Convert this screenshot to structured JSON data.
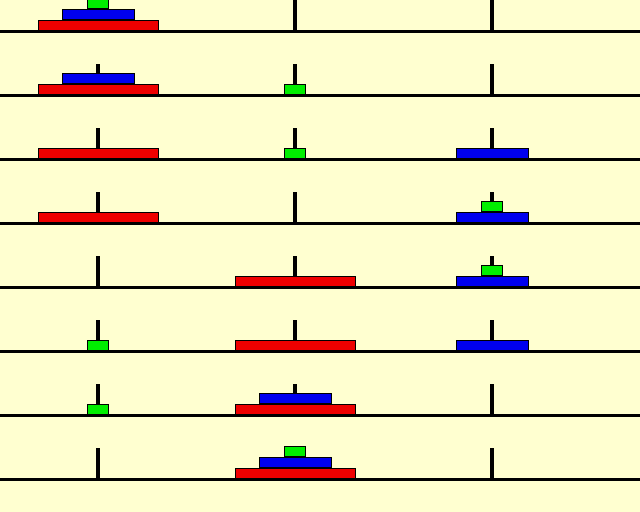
{
  "title": "",
  "disks": {
    "small": {
      "color": "#00ee00"
    },
    "medium": {
      "color": "#0000ee"
    },
    "large": {
      "color": "#ee0000"
    }
  },
  "colors": {
    "background": "#ffffd0",
    "peg": "#000000",
    "baseline": "#000000"
  },
  "pegs": [
    "left",
    "middle",
    "right"
  ],
  "states": [
    {
      "pegs": [
        [
          "large",
          "medium",
          "small"
        ],
        [],
        []
      ]
    },
    {
      "pegs": [
        [
          "large",
          "medium"
        ],
        [
          "small"
        ],
        []
      ]
    },
    {
      "pegs": [
        [
          "large"
        ],
        [
          "small"
        ],
        [
          "medium"
        ]
      ]
    },
    {
      "pegs": [
        [
          "large"
        ],
        [],
        [
          "medium",
          "small"
        ]
      ]
    },
    {
      "pegs": [
        [],
        [
          "large"
        ],
        [
          "medium",
          "small"
        ]
      ]
    },
    {
      "pegs": [
        [
          "small"
        ],
        [
          "large"
        ],
        [
          "medium"
        ]
      ]
    },
    {
      "pegs": [
        [
          "small"
        ],
        [
          "large",
          "medium"
        ],
        []
      ]
    },
    {
      "pegs": [
        [],
        [
          "large",
          "medium",
          "small"
        ],
        []
      ]
    }
  ]
}
